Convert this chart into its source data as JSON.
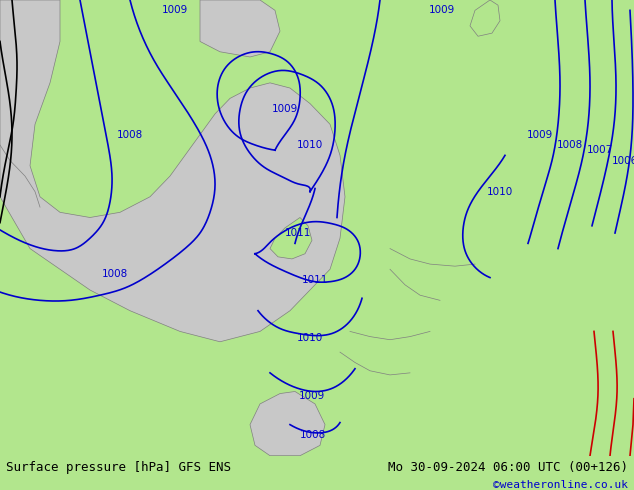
{
  "title_left": "Surface pressure [hPa] GFS ENS",
  "title_right": "Mo 30-09-2024 06:00 UTC (00+126)",
  "credit": "©weatheronline.co.uk",
  "bg_color": "#b2e68d",
  "land_color": "#b2e68d",
  "sea_color": "#c8c8c8",
  "contour_color_blue": "#0000cc",
  "contour_color_black": "#000000",
  "contour_color_red": "#cc0000",
  "figsize": [
    6.34,
    4.9
  ],
  "dpi": 100,
  "bottom_bar_color": "#d4edb0",
  "text_color_left": "#000000",
  "text_color_right": "#000000",
  "text_color_credit": "#0000cc",
  "font_size_bottom": 9,
  "font_size_credit": 8
}
